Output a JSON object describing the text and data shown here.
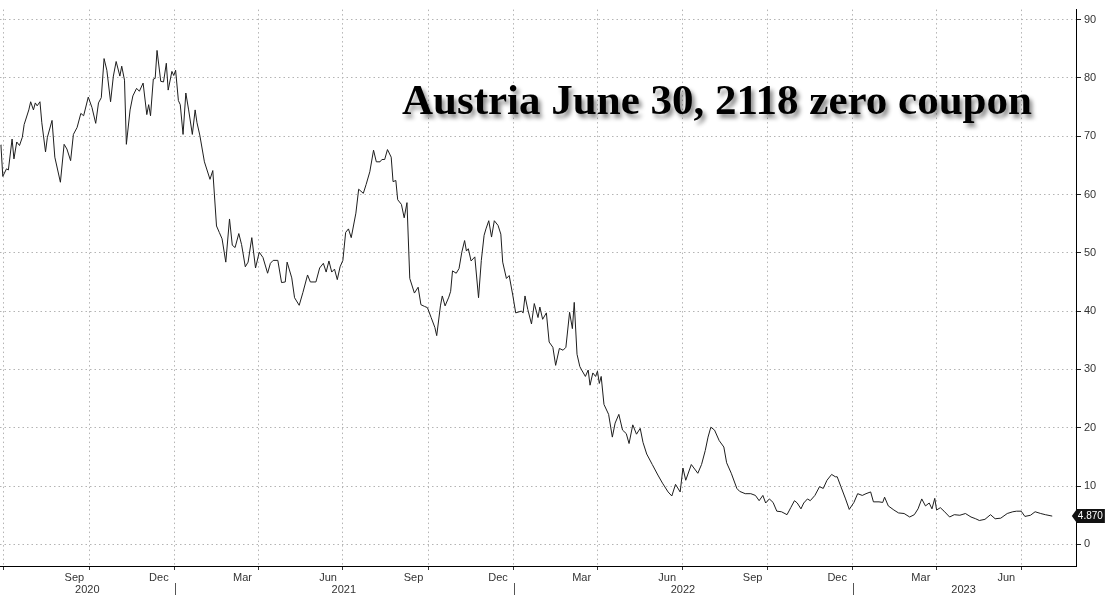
{
  "chart_data": {
    "type": "line",
    "title": "Austria June 30, 2118 zero coupon",
    "color": "#1e1e1e",
    "marker": "none",
    "grid": true,
    "xlim": [
      "2020-06-27",
      "2023-08-29"
    ],
    "xticks": [
      {
        "value": "2020-07-01",
        "label": null
      },
      {
        "value": "2020-09-15",
        "label": "Sep"
      },
      {
        "value": "2020-10-01",
        "label": null
      },
      {
        "value": "2020-12-15",
        "label": "Dec"
      },
      {
        "value": "2021-01-01",
        "label": null
      },
      {
        "value": "2021-03-15",
        "label": "Mar"
      },
      {
        "value": "2021-04-01",
        "label": null
      },
      {
        "value": "2021-06-15",
        "label": "Jun"
      },
      {
        "value": "2021-07-01",
        "label": null
      },
      {
        "value": "2021-09-15",
        "label": "Sep"
      },
      {
        "value": "2021-10-01",
        "label": null
      },
      {
        "value": "2021-12-15",
        "label": "Dec"
      },
      {
        "value": "2022-01-01",
        "label": null
      },
      {
        "value": "2022-03-15",
        "label": "Mar"
      },
      {
        "value": "2022-04-01",
        "label": null
      },
      {
        "value": "2022-06-15",
        "label": "Jun"
      },
      {
        "value": "2022-07-01",
        "label": null
      },
      {
        "value": "2022-09-15",
        "label": "Sep"
      },
      {
        "value": "2022-10-01",
        "label": null
      },
      {
        "value": "2022-12-15",
        "label": "Dec"
      },
      {
        "value": "2023-01-01",
        "label": null
      },
      {
        "value": "2023-03-15",
        "label": "Mar"
      },
      {
        "value": "2023-04-01",
        "label": null
      },
      {
        "value": "2023-06-15",
        "label": "Jun"
      },
      {
        "value": "2023-07-01",
        "label": null
      }
    ],
    "x2lim": [
      "2020-06-27",
      "2023-08-29"
    ],
    "x2ticks": [
      {
        "value": "2020-09-29",
        "label": "2020"
      },
      {
        "value": "2021-01-01",
        "label": null
      },
      {
        "value": "2021-07-02",
        "label": "2021"
      },
      {
        "value": "2022-01-01",
        "label": null
      },
      {
        "value": "2022-07-02",
        "label": "2022"
      },
      {
        "value": "2023-01-01",
        "label": null
      },
      {
        "value": "2023-04-30",
        "label": "2023"
      }
    ],
    "ylim": [
      -3.7,
      91.7
    ],
    "yticks": [
      0,
      10,
      20,
      30,
      40,
      50,
      60,
      70,
      80,
      90
    ],
    "annotations": [
      {
        "text": "4.870",
        "x": "2023-08-03",
        "y": 4.87
      }
    ],
    "x": [
      "2020-06-28",
      "2020-06-30",
      "2020-07-04",
      "2020-07-06",
      "2020-07-10",
      "2020-07-12",
      "2020-07-15",
      "2020-07-18",
      "2020-07-21",
      "2020-07-23",
      "2020-07-28",
      "2020-07-30",
      "2020-08-02",
      "2020-08-04",
      "2020-08-06",
      "2020-08-09",
      "2020-08-11",
      "2020-08-15",
      "2020-08-17",
      "2020-08-22",
      "2020-08-25",
      "2020-08-31",
      "2020-09-04",
      "2020-09-07",
      "2020-09-11",
      "2020-09-14",
      "2020-09-18",
      "2020-09-22",
      "2020-09-25",
      "2020-09-30",
      "2020-10-04",
      "2020-10-08",
      "2020-10-11",
      "2020-10-14",
      "2020-10-17",
      "2020-10-20",
      "2020-10-24",
      "2020-10-27",
      "2020-10-30",
      "2020-11-03",
      "2020-11-05",
      "2020-11-08",
      "2020-11-10",
      "2020-11-14",
      "2020-11-17",
      "2020-11-21",
      "2020-11-24",
      "2020-11-28",
      "2020-12-02",
      "2020-12-04",
      "2020-12-06",
      "2020-12-09",
      "2020-12-11",
      "2020-12-13",
      "2020-12-17",
      "2020-12-20",
      "2020-12-23",
      "2020-12-25",
      "2020-12-29",
      "2020-12-31",
      "2021-01-02",
      "2021-01-05",
      "2021-01-07",
      "2021-01-10",
      "2021-01-13",
      "2021-01-16",
      "2021-01-20",
      "2021-01-23",
      "2021-01-25",
      "2021-01-28",
      "2021-02-02",
      "2021-02-08",
      "2021-02-11",
      "2021-02-15",
      "2021-02-18",
      "2021-02-21",
      "2021-02-25",
      "2021-03-01",
      "2021-03-04",
      "2021-03-07",
      "2021-03-11",
      "2021-03-14",
      "2021-03-18",
      "2021-03-21",
      "2021-03-25",
      "2021-03-29",
      "2021-04-02",
      "2021-04-06",
      "2021-04-11",
      "2021-04-14",
      "2021-04-17",
      "2021-04-22",
      "2021-04-26",
      "2021-04-30",
      "2021-05-02",
      "2021-05-07",
      "2021-05-10",
      "2021-05-15",
      "2021-05-19",
      "2021-05-24",
      "2021-05-27",
      "2021-06-02",
      "2021-06-06",
      "2021-06-10",
      "2021-06-13",
      "2021-06-16",
      "2021-06-19",
      "2021-06-22",
      "2021-06-25",
      "2021-06-28",
      "2021-07-01",
      "2021-07-04",
      "2021-07-07",
      "2021-07-10",
      "2021-07-15",
      "2021-07-18",
      "2021-07-23",
      "2021-07-26",
      "2021-07-30",
      "2021-08-03",
      "2021-08-06",
      "2021-08-10",
      "2021-08-12",
      "2021-08-15",
      "2021-08-18",
      "2021-08-22",
      "2021-08-24",
      "2021-08-27",
      "2021-08-29",
      "2021-09-02",
      "2021-09-05",
      "2021-09-08",
      "2021-09-11",
      "2021-09-16",
      "2021-09-20",
      "2021-09-23",
      "2021-09-27",
      "2021-09-30",
      "2021-10-04",
      "2021-10-08",
      "2021-10-10",
      "2021-10-14",
      "2021-10-16",
      "2021-10-19",
      "2021-10-23",
      "2021-10-25",
      "2021-10-27",
      "2021-10-31",
      "2021-11-03",
      "2021-11-06",
      "2021-11-09",
      "2021-11-11",
      "2021-11-13",
      "2021-11-16",
      "2021-11-20",
      "2021-11-24",
      "2021-11-27",
      "2021-11-30",
      "2021-12-02",
      "2021-12-05",
      "2021-12-08",
      "2021-12-11",
      "2021-12-15",
      "2021-12-18",
      "2021-12-20",
      "2021-12-24",
      "2021-12-27",
      "2021-12-31",
      "2022-01-03",
      "2022-01-09",
      "2022-01-11",
      "2022-01-13",
      "2022-01-16",
      "2022-01-20",
      "2022-01-23",
      "2022-01-27",
      "2022-01-29",
      "2022-02-01",
      "2022-02-05",
      "2022-02-08",
      "2022-02-12",
      "2022-02-15",
      "2022-02-19",
      "2022-02-23",
      "2022-02-26",
      "2022-03-02",
      "2022-03-05",
      "2022-03-07",
      "2022-03-10",
      "2022-03-13",
      "2022-03-15",
      "2022-03-19",
      "2022-03-22",
      "2022-03-24",
      "2022-03-27",
      "2022-03-30",
      "2022-04-01",
      "2022-04-03",
      "2022-04-05",
      "2022-04-08",
      "2022-04-13",
      "2022-04-17",
      "2022-04-20",
      "2022-04-24",
      "2022-04-28",
      "2022-05-02",
      "2022-05-05",
      "2022-05-09",
      "2022-05-13",
      "2022-05-17",
      "2022-05-20",
      "2022-05-24",
      "2022-05-30",
      "2022-06-05",
      "2022-06-10",
      "2022-06-16",
      "2022-06-20",
      "2022-06-24",
      "2022-06-29",
      "2022-07-02",
      "2022-07-05",
      "2022-07-11",
      "2022-07-18",
      "2022-07-22",
      "2022-07-26",
      "2022-07-29",
      "2022-08-01",
      "2022-08-05",
      "2022-08-10",
      "2022-08-15",
      "2022-08-18",
      "2022-08-23",
      "2022-08-29",
      "2022-09-01",
      "2022-09-07",
      "2022-09-13",
      "2022-09-18",
      "2022-09-22",
      "2022-09-26",
      "2022-09-29",
      "2022-10-03",
      "2022-10-07",
      "2022-10-11",
      "2022-10-16",
      "2022-10-22",
      "2022-10-26",
      "2022-10-30",
      "2022-11-02",
      "2022-11-06",
      "2022-11-09",
      "2022-11-13",
      "2022-11-16",
      "2022-11-21",
      "2022-11-26",
      "2022-11-30",
      "2022-12-04",
      "2022-12-09",
      "2022-12-13",
      "2022-12-15",
      "2022-12-19",
      "2022-12-24",
      "2022-12-28",
      "2023-01-02",
      "2023-01-06",
      "2023-01-11",
      "2023-01-15",
      "2023-01-20",
      "2023-01-23",
      "2023-01-29",
      "2023-02-02",
      "2023-02-04",
      "2023-02-08",
      "2023-02-14",
      "2023-02-19",
      "2023-02-25",
      "2023-03-03",
      "2023-03-08",
      "2023-03-12",
      "2023-03-16",
      "2023-03-20",
      "2023-03-24",
      "2023-03-27",
      "2023-03-30",
      "2023-04-01",
      "2023-04-05",
      "2023-04-09",
      "2023-04-15",
      "2023-04-20",
      "2023-04-26",
      "2023-05-02",
      "2023-05-08",
      "2023-05-13",
      "2023-05-17",
      "2023-05-23",
      "2023-05-29",
      "2023-06-03",
      "2023-06-09",
      "2023-06-16",
      "2023-06-22",
      "2023-06-26",
      "2023-07-01",
      "2023-07-05",
      "2023-07-11",
      "2023-07-16",
      "2023-07-22",
      "2023-07-27",
      "2023-08-03"
    ],
    "values": [
      68.5,
      63.1,
      64.4,
      64.2,
      69.5,
      66.1,
      69,
      68.4,
      69.8,
      72,
      74.5,
      75.9,
      74.5,
      75.7,
      75.2,
      75.9,
      72.3,
      67.3,
      69.8,
      72.7,
      66.4,
      62.1,
      68.6,
      67.8,
      65.8,
      70.3,
      71.5,
      73.9,
      73.5,
      76.7,
      74.9,
      72.2,
      75.7,
      76.6,
      83.3,
      81.3,
      75.9,
      80.3,
      82.8,
      80.3,
      82,
      79.6,
      68.6,
      74.5,
      76.9,
      78.2,
      77.7,
      79.1,
      73.7,
      75.4,
      73.5,
      79.8,
      79.9,
      84.7,
      79.4,
      79.3,
      82.5,
      77.9,
      81.1,
      80.4,
      81.3,
      76.1,
      75.4,
      70.3,
      77.4,
      74.5,
      70.3,
      74.5,
      72.3,
      70.2,
      65.6,
      62.6,
      64.1,
      54.6,
      53.5,
      52.4,
      48.4,
      55.8,
      51.3,
      50.9,
      53.3,
      51.4,
      47.6,
      48.4,
      52.6,
      47.4,
      50.1,
      49.2,
      46.5,
      48.2,
      48.7,
      48.7,
      44.9,
      45,
      48.4,
      45.7,
      42.3,
      41,
      43.2,
      46.2,
      45,
      45,
      47.4,
      48.2,
      46.7,
      48.6,
      46.7,
      47.2,
      45.4,
      47.6,
      48.7,
      53.5,
      54.1,
      52.6,
      56.8,
      60.9,
      60.2,
      61.7,
      63.9,
      67.6,
      65.6,
      65.6,
      66,
      66,
      67.7,
      66.4,
      62.2,
      62.4,
      59.1,
      58.3,
      56,
      58.6,
      45.6,
      43.1,
      44.1,
      41.1,
      40.8,
      40.6,
      38.9,
      37.2,
      35.8,
      40.9,
      42.6,
      40.9,
      42.4,
      43.4,
      46.9,
      46.5,
      47.3,
      50.1,
      52.1,
      50.3,
      50.7,
      48.6,
      49.3,
      42.3,
      48.7,
      53,
      54.1,
      55.5,
      52.7,
      55.5,
      54.7,
      53.2,
      48.4,
      45.6,
      46.1,
      42.6,
      39.7,
      40,
      39.7,
      42.6,
      40.3,
      37.8,
      41.3,
      38.9,
      40.7,
      38.6,
      39.7,
      34.7,
      33.8,
      30.7,
      33.6,
      33.3,
      33.8,
      39.8,
      37,
      41.5,
      32.6,
      30.5,
      29.9,
      28.8,
      29.9,
      27.3,
      29.4,
      28.8,
      29.7,
      27.6,
      28.8,
      24,
      22.3,
      18.4,
      20.8,
      22.3,
      19.6,
      19,
      17.3,
      20.5,
      18.9,
      19.9,
      17.5,
      15.5,
      13.7,
      11.9,
      10.5,
      9,
      8.3,
      10.3,
      9,
      13.1,
      11,
      13.7,
      12.2,
      13.7,
      16.1,
      18.4,
      20.1,
      19.6,
      17.8,
      16.7,
      14,
      12.2,
      9.6,
      9.1,
      8.7,
      8.7,
      8.4,
      7.5,
      8.4,
      7.1,
      7.8,
      7.2,
      5.7,
      5.6,
      5.1,
      6.3,
      7.5,
      7.1,
      6.1,
      7.1,
      7.8,
      7.5,
      8.4,
      9.9,
      9.6,
      11,
      12,
      11.6,
      11.6,
      9.9,
      7.8,
      6,
      7.2,
      8.7,
      8.4,
      8.7,
      9,
      7.3,
      7.3,
      7.2,
      8.1,
      6.6,
      5.9,
      5.4,
      5.3,
      4.7,
      5.1,
      6.1,
      7.8,
      6.6,
      7.1,
      6.1,
      7.9,
      5.9,
      6.3,
      5.7,
      4.7,
      5.1,
      5,
      5.3,
      4.7,
      4.4,
      4.1,
      4.3,
      5.1,
      4.4,
      4.5,
      5.3,
      5.6,
      5.7,
      5.7,
      4.8,
      5,
      5.6,
      5.3,
      5.1,
      4.87
    ]
  }
}
